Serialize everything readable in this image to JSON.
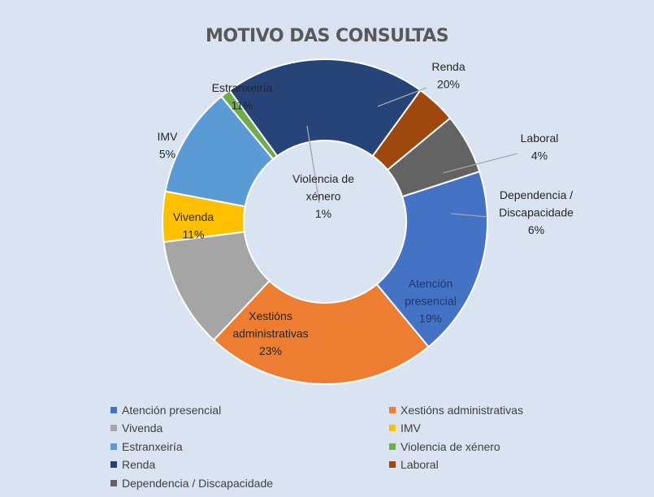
{
  "chart_data": {
    "type": "pie",
    "variant": "doughnut",
    "title": "MOTIVO DAS CONSULTAS",
    "legend_position": "bottom",
    "slices": [
      {
        "name": "Atención presencial",
        "value": 19,
        "label": "19%",
        "color": "#4472c4"
      },
      {
        "name": "Xestións administrativas",
        "value": 23,
        "label": "23%",
        "color": "#ed7d31"
      },
      {
        "name": "Vivenda",
        "value": 11,
        "label": "11%",
        "color": "#a5a5a5"
      },
      {
        "name": "IMV",
        "value": 5,
        "label": "5%",
        "color": "#ffc000"
      },
      {
        "name": "Estranxeiría",
        "value": 11,
        "label": "11%",
        "color": "#5b9bd5"
      },
      {
        "name": "Violencia de xénero",
        "value": 1,
        "label": "1%",
        "color": "#70ad47"
      },
      {
        "name": "Renda",
        "value": 20,
        "label": "20%",
        "color": "#264478"
      },
      {
        "name": "Laboral",
        "value": 4,
        "label": "4%",
        "color": "#9e480e"
      },
      {
        "name": "Dependencia / Discapacidade",
        "value": 6,
        "label": "6%",
        "color": "#636363"
      }
    ],
    "data_labels": [
      {
        "slice": 0,
        "lines": [
          "Atención",
          "presencial"
        ]
      },
      {
        "slice": 1,
        "lines": [
          "Xestións",
          "administrativas"
        ]
      },
      {
        "slice": 2,
        "lines": [
          "Vivenda"
        ]
      },
      {
        "slice": 3,
        "lines": [
          "IMV"
        ]
      },
      {
        "slice": 4,
        "lines": [
          "Estranxeiría"
        ]
      },
      {
        "slice": 5,
        "lines": [
          "Violencia de",
          "xénero"
        ]
      },
      {
        "slice": 6,
        "lines": [
          "Renda"
        ]
      },
      {
        "slice": 7,
        "lines": [
          "Laboral"
        ]
      },
      {
        "slice": 8,
        "lines": [
          "Dependencia /",
          "Discapacidade"
        ]
      }
    ]
  }
}
